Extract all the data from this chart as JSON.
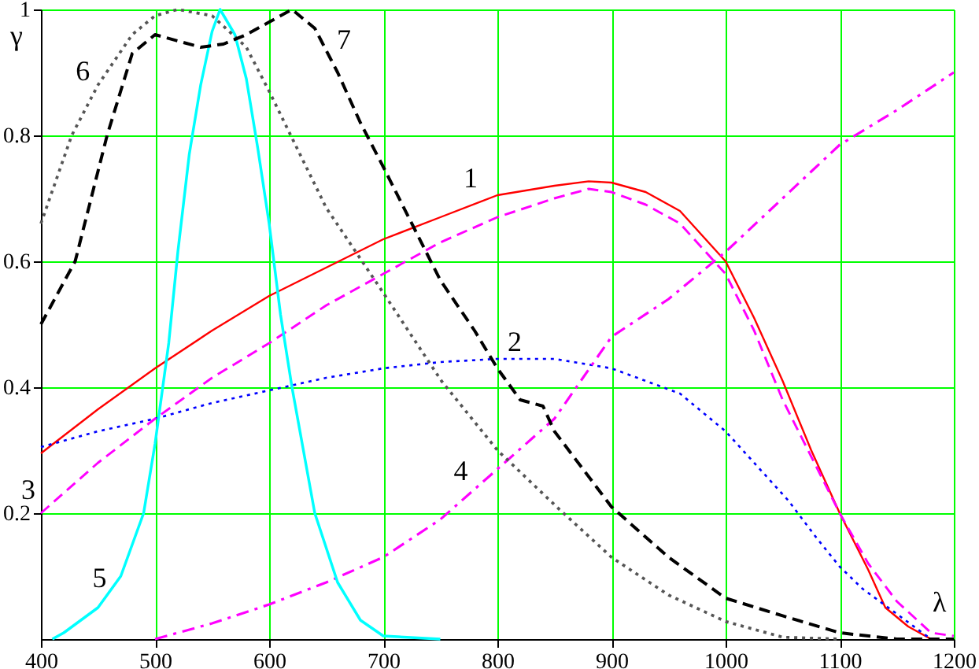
{
  "chart_data": {
    "type": "line",
    "xlabel": "λ",
    "ylabel": "γ",
    "xlim": [
      400,
      1200
    ],
    "ylim": [
      0,
      1
    ],
    "xticks": [
      400,
      500,
      600,
      700,
      800,
      900,
      1000,
      1100,
      1200
    ],
    "yticks": [
      0.2,
      0.4,
      0.6,
      0.8,
      1
    ],
    "grid": true,
    "series": [
      {
        "name": "1",
        "color": "#ff0000",
        "line_style": "solid",
        "x": [
          400,
          450,
          500,
          550,
          600,
          650,
          700,
          750,
          800,
          850,
          880,
          900,
          930,
          960,
          1000,
          1025,
          1050,
          1075,
          1100,
          1125,
          1140,
          1160,
          1180
        ],
        "values": [
          0.295,
          0.365,
          0.43,
          0.49,
          0.545,
          0.59,
          0.635,
          0.67,
          0.705,
          0.72,
          0.727,
          0.725,
          0.71,
          0.68,
          0.6,
          0.51,
          0.41,
          0.3,
          0.2,
          0.11,
          0.05,
          0.02,
          0
        ]
      },
      {
        "name": "2",
        "color": "#0000ff",
        "line_style": "dotted",
        "x": [
          400,
          450,
          500,
          550,
          600,
          650,
          700,
          750,
          800,
          850,
          900,
          930,
          960,
          1000,
          1030,
          1055,
          1080,
          1100,
          1120,
          1150,
          1180
        ],
        "values": [
          0.305,
          0.33,
          0.35,
          0.375,
          0.395,
          0.415,
          0.43,
          0.44,
          0.445,
          0.445,
          0.43,
          0.41,
          0.39,
          0.33,
          0.27,
          0.22,
          0.16,
          0.115,
          0.08,
          0.04,
          0
        ]
      },
      {
        "name": "3",
        "color": "#ff00ff",
        "line_style": "dashed",
        "x": [
          400,
          450,
          500,
          550,
          600,
          650,
          700,
          750,
          800,
          850,
          880,
          900,
          930,
          960,
          1000,
          1025,
          1050,
          1075,
          1100,
          1125,
          1150,
          1180,
          1200
        ],
        "values": [
          0.2,
          0.28,
          0.35,
          0.415,
          0.47,
          0.53,
          0.58,
          0.63,
          0.67,
          0.7,
          0.715,
          0.71,
          0.69,
          0.66,
          0.58,
          0.49,
          0.38,
          0.29,
          0.2,
          0.12,
          0.06,
          0.01,
          0.005
        ]
      },
      {
        "name": "4",
        "color": "#ff00ff",
        "line_style": "dashdot",
        "x": [
          500,
          550,
          600,
          650,
          700,
          750,
          800,
          850,
          900,
          950,
          1000,
          1050,
          1100,
          1150,
          1200
        ],
        "values": [
          0,
          0.025,
          0.055,
          0.09,
          0.13,
          0.19,
          0.27,
          0.35,
          0.48,
          0.54,
          0.615,
          0.7,
          0.785,
          0.84,
          0.9
        ]
      },
      {
        "name": "5",
        "color": "#00ffff",
        "line_style": "solid",
        "x": [
          410,
          420,
          450,
          470,
          480,
          490,
          500,
          512,
          520,
          530,
          540,
          550,
          557,
          570,
          580,
          590,
          600,
          610,
          620,
          640,
          660,
          680,
          700,
          750
        ],
        "values": [
          0,
          0.01,
          0.05,
          0.1,
          0.15,
          0.2,
          0.31,
          0.47,
          0.615,
          0.77,
          0.88,
          0.965,
          1,
          0.96,
          0.89,
          0.78,
          0.66,
          0.515,
          0.4,
          0.2,
          0.09,
          0.03,
          0.005,
          0
        ]
      },
      {
        "name": "6",
        "color": "#555555",
        "line_style": "dotted",
        "x": [
          400,
          427,
          450,
          480,
          500,
          520,
          550,
          580,
          600,
          650,
          700,
          751,
          800,
          852,
          900,
          950,
          1000,
          1050,
          1100
        ],
        "values": [
          0.66,
          0.8,
          0.88,
          0.96,
          0.99,
          1,
          0.99,
          0.94,
          0.87,
          0.685,
          0.55,
          0.41,
          0.3,
          0.21,
          0.13,
          0.07,
          0.028,
          0.003,
          0
        ]
      },
      {
        "name": "7",
        "color": "#000000",
        "line_style": "dashed",
        "x": [
          400,
          430,
          458,
          480,
          500,
          520,
          540,
          560,
          580,
          600,
          620,
          640,
          660,
          680,
          700,
          750,
          780,
          800,
          820,
          840,
          850,
          900,
          950,
          1000,
          1050,
          1100,
          1150,
          1200
        ],
        "values": [
          0.5,
          0.6,
          0.8,
          0.93,
          0.96,
          0.95,
          0.94,
          0.945,
          0.96,
          0.98,
          1,
          0.97,
          0.9,
          0.82,
          0.75,
          0.57,
          0.49,
          0.43,
          0.38,
          0.37,
          0.33,
          0.21,
          0.13,
          0.065,
          0.037,
          0.01,
          0,
          0
        ]
      }
    ]
  }
}
